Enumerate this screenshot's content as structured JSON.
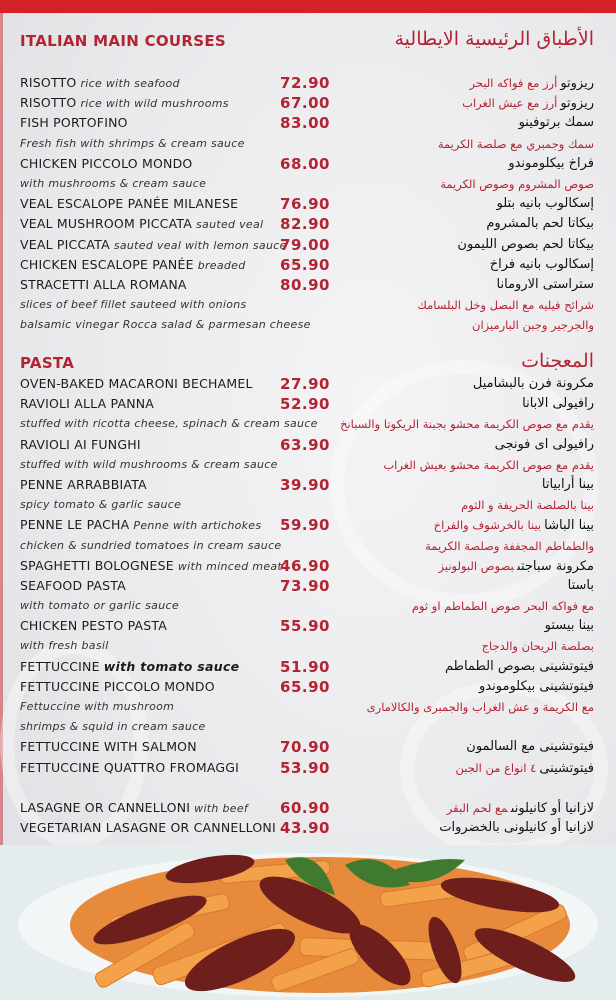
{
  "colors": {
    "accent_red": "#b32331",
    "top_bar": "#d42027",
    "text": "#1c1c1c"
  },
  "main": {
    "title": "ITALIAN MAIN COURSES",
    "title_ar": "الأطباق الرئيسية الايطالية",
    "lines": [
      {
        "name": "RISOTTO",
        "note": "rice with seafood",
        "price": "72.90",
        "ar": "ريزوتو",
        "ar_note": "أرز مع فواكه البحر"
      },
      {
        "name": "RISOTTO",
        "note": "rice with wild mushrooms",
        "price": "67.00",
        "ar": "ريزوتو",
        "ar_note": "أرز مع عيش الغراب"
      },
      {
        "name": "FISH PORTOFINO",
        "price": "83.00",
        "ar": "سمك برتوفينو"
      },
      {
        "desc": "Fresh fish with shrimps & cream sauce",
        "ar_desc": "سمك وجمبري مع صلصة الكريمة"
      },
      {
        "name": "CHICKEN PICCOLO MONDO",
        "price": "68.00",
        "ar": "فراخ بيكلوموندو"
      },
      {
        "desc": "with mushrooms & cream sauce",
        "ar_desc": "صوص المشروم وصوص الكريمة"
      },
      {
        "name": "VEAL ESCALOPE PANÉE MILANESE",
        "price": "76.90",
        "ar": "إسكالوب بانيه بتلو"
      },
      {
        "name": "VEAL MUSHROOM PICCATA",
        "note": "sauted veal",
        "price": "82.90",
        "ar": "بيكاتا لحم بالمشروم"
      },
      {
        "name": "VEAL PICCATA",
        "note": "sauted veal with lemon sauce",
        "price": "79.00",
        "ar": "بيكاتا لحم بصوص الليمون"
      },
      {
        "name": "CHICKEN ESCALOPE PANÉE",
        "note": "breaded",
        "price": "65.90",
        "ar": "إسكالوب بانيه فراخ"
      },
      {
        "name": "STRACETTI ALLA ROMANA",
        "price": "80.90",
        "ar": "ستراستى الارومانا"
      },
      {
        "desc": "slices of beef fillet sauteed with onions",
        "ar_desc": "شرائح فيليه مع البصل وخل البلسامك"
      },
      {
        "desc": "balsamic vinegar Rocca salad & parmesan cheese",
        "ar_desc": "والجرجير وجبن البارميزان"
      }
    ]
  },
  "pasta": {
    "title": "PASTA",
    "title_ar": "المعجنات",
    "lines": [
      {
        "name": "OVEN-BAKED MACARONI BECHAMEL",
        "price": "27.90",
        "ar": "مكرونة فرن بالبشاميل"
      },
      {
        "name": "RAVIOLI ALLA PANNA",
        "price": "52.90",
        "ar": "رافيولى الابانا"
      },
      {
        "desc": "stuffed with ricotta cheese, spinach & cream sauce",
        "ar_desc": "يقدم مع صوص الكريمة محشو بجبنة الريكوتا والسبانخ"
      },
      {
        "name": "RAVIOLI AI FUNGHI",
        "price": "63.90",
        "ar": "رافيولى اى فونجى"
      },
      {
        "desc": "stuffed with wild mushrooms & cream sauce",
        "ar_desc": "يقدم مع صوص الكريمة محشو بعيش الغراب"
      },
      {
        "name": "PENNE ARRABBIATA",
        "price": "39.90",
        "ar": "بينا أرابياتا"
      },
      {
        "desc": "spicy tomato & garlic sauce",
        "ar_desc": "بينا بالصلصة الحريفة و الثوم"
      },
      {
        "name": "PENNE LE PACHA",
        "note": "Penne with artichokes",
        "price": "59.90",
        "ar": "بينا الباشا",
        "ar_note": "بينا بالخرشوف والفراخ"
      },
      {
        "desc": "chicken & sundried tomatoes in cream sauce",
        "ar_desc": "والطماطم المجففة وصلصة الكريمة"
      },
      {
        "name": "SPAGHETTI BOLOGNESE",
        "note": "with minced meat",
        "price": "46.90",
        "ar": "مكرونة سباجتى",
        "ar_note": "بصوص البولونيز"
      },
      {
        "name": "SEAFOOD PASTA",
        "price": "73.90",
        "ar": "باستا"
      },
      {
        "desc": "with tomato or garlic sauce",
        "ar_desc": "مع فواكه البحر صوص الطماطم او ثوم"
      },
      {
        "name": "CHICKEN PESTO PASTA",
        "price": "55.90",
        "ar": "بينا بيستو"
      },
      {
        "desc": "with fresh basil",
        "ar_desc": "بصلصة الريحان والدجاج"
      },
      {
        "name": "FETTUCCINE",
        "note": "with tomato sauce",
        "note_emphasis": true,
        "price": "51.90",
        "ar": "فيتوتشينى بصوص الطماطم"
      },
      {
        "name": "FETTUCCINE PICCOLO MONDO",
        "price": "65.90",
        "ar": "فيتوتشينى بيكلوموندو"
      },
      {
        "desc": "Fettuccine with mushroom",
        "ar_desc": "مع الكريمة و عش الغراب والجمبرى والكالامارى"
      },
      {
        "desc": " shrimps & squid in cream sauce"
      },
      {
        "name": "FETTUCCINE WITH SALMON",
        "price": "70.90",
        "ar": "فيتوتشينى مع السالمون"
      },
      {
        "name": "FETTUCCINE QUATTRO FROMAGGI",
        "price": "53.90",
        "ar": "فيتوتشينى",
        "ar_note": "٤ انواع من الجبن"
      }
    ],
    "extra": [
      {
        "name": "LASAGNE OR CANNELLONI",
        "note": "with beef",
        "price": "60.90",
        "ar": "لازانيا أو كانيلونى",
        "ar_note": "مع لحم البقر"
      },
      {
        "name": "VEGETARIAN LASAGNE OR CANNELLONI",
        "price": "43.90",
        "ar": "لازانيا أو كانيلونى بالخضروات"
      }
    ]
  },
  "photo": {
    "icon": "penne-pasta-dish-photo"
  }
}
